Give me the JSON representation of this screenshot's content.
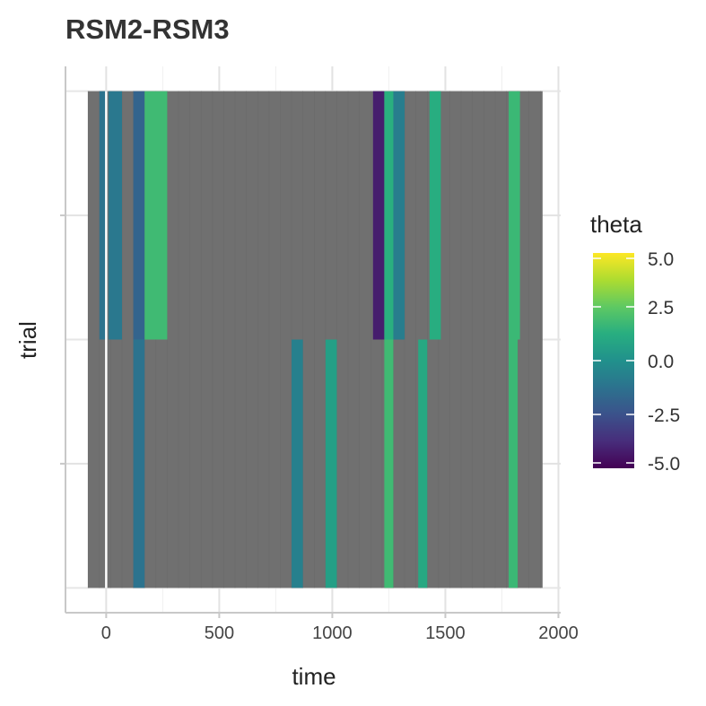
{
  "chart_data": {
    "type": "heatmap",
    "title": "RSM2-RSM3",
    "xlabel": "time",
    "ylabel": "trial",
    "xlim": [
      -180,
      2010
    ],
    "x_ticks": [
      0,
      500,
      1000,
      1500,
      2000
    ],
    "x_tick_labels": [
      "0",
      "500",
      "1000",
      "1500",
      "2000"
    ],
    "y_categories": 2,
    "vline_x": 0,
    "background_fill": "#707070",
    "x_extent": [
      -80,
      1930
    ],
    "grid": true,
    "legend": {
      "title": "theta",
      "position": "right",
      "colormap": "viridis",
      "range": [
        -5,
        5
      ],
      "ticks": [
        5.0,
        2.5,
        0.0,
        -2.5,
        -5.0
      ],
      "tick_labels": [
        "5.0",
        "2.5",
        "0.0",
        "-2.5",
        "-5.0"
      ]
    },
    "series": [
      {
        "trial": 1,
        "bands": [
          {
            "start": -30,
            "end": 5,
            "theta": -1.2
          },
          {
            "start": 10,
            "end": 70,
            "theta": -1.0
          },
          {
            "start": 120,
            "end": 170,
            "theta": -1.8
          },
          {
            "start": 170,
            "end": 270,
            "theta": 1.8
          },
          {
            "start": 1180,
            "end": 1230,
            "theta": -4.2
          },
          {
            "start": 1230,
            "end": 1270,
            "theta": 1.3
          },
          {
            "start": 1270,
            "end": 1320,
            "theta": -0.8
          },
          {
            "start": 1430,
            "end": 1480,
            "theta": 1.2
          },
          {
            "start": 1780,
            "end": 1830,
            "theta": 1.7
          }
        ]
      },
      {
        "trial": 2,
        "bands": [
          {
            "start": 120,
            "end": 170,
            "theta": -1.2
          },
          {
            "start": 820,
            "end": 870,
            "theta": -0.7
          },
          {
            "start": 970,
            "end": 1020,
            "theta": 0.6
          },
          {
            "start": 1230,
            "end": 1270,
            "theta": 1.8
          },
          {
            "start": 1380,
            "end": 1420,
            "theta": 1.0
          },
          {
            "start": 1780,
            "end": 1820,
            "theta": 1.7
          }
        ]
      }
    ]
  }
}
